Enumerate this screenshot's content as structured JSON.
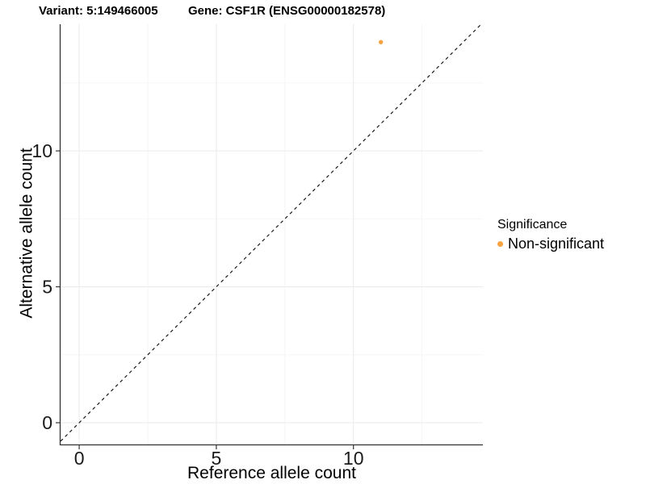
{
  "header": {
    "variant_title": "Variant: 5:149466005",
    "gene_title": "Gene: CSF1R (ENSG00000182578)"
  },
  "chart_data": {
    "type": "scatter",
    "title": "Variant: 5:149466005   Gene: CSF1R (ENSG00000182578)",
    "xlabel": "Reference allele count",
    "ylabel": "Alternative allele count",
    "xlim": [
      -0.68,
      14.72
    ],
    "ylim": [
      -0.8,
      14.66
    ],
    "x_ticks": [
      0,
      5,
      10
    ],
    "y_ticks": [
      0,
      5,
      10
    ],
    "x_minor_ticks": [
      2.5,
      7.5,
      12.5
    ],
    "y_minor_ticks": [
      2.5,
      7.5,
      12.5
    ],
    "grid": true,
    "identity_line": {
      "slope": 1,
      "intercept": 0,
      "style": "dashed",
      "color": "#1a1a1a"
    },
    "series": [
      {
        "name": "Non-significant",
        "color": "#F9A242",
        "points": [
          {
            "x": 11,
            "y": 14
          }
        ]
      }
    ],
    "legend": {
      "position": "right",
      "title": "Significance",
      "entries": [
        {
          "label": "Non-significant",
          "color": "#F9A242"
        }
      ]
    },
    "colors": {
      "axis_line": "#333333",
      "grid_major": "#ececec",
      "grid_minor": "#f5f5f5",
      "tick_text": "#1a1a1a"
    }
  }
}
